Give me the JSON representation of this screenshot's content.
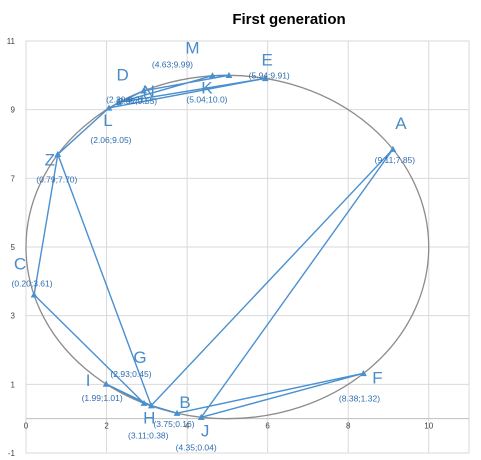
{
  "chart_data": {
    "type": "scatter",
    "title": "First generation",
    "xlabel": "",
    "ylabel": "",
    "xlim": [
      0,
      11
    ],
    "ylim": [
      -1,
      11
    ],
    "x_ticks": [
      "0",
      "2",
      "4",
      "6",
      "8",
      "10"
    ],
    "y_ticks": [
      "-1",
      "1",
      "3",
      "5",
      "7",
      "9",
      "11"
    ],
    "grid": true,
    "legend": "none",
    "colors": {
      "path": "#4a90d0",
      "circle": "#8c8c8c",
      "grid": "#d9d9d9",
      "label": "#4a8cc8"
    },
    "circle": {
      "center": [
        5,
        5
      ],
      "radius": 5
    },
    "points": [
      {
        "id": "A",
        "x": 9.11,
        "y": 7.85,
        "coord": "(9.11;7.85)"
      },
      {
        "id": "B",
        "x": 3.75,
        "y": 0.16,
        "coord": "(3.75;0.16)"
      },
      {
        "id": "C",
        "x": 0.2,
        "y": 3.61,
        "coord": "(0.20;3.61)"
      },
      {
        "id": "D",
        "x": 2.3,
        "y": 9.21,
        "coord": "(2.30;9.21)"
      },
      {
        "id": "E",
        "x": 5.94,
        "y": 9.91,
        "coord": "(5.94;9.91)"
      },
      {
        "id": "F",
        "x": 8.38,
        "y": 1.32,
        "coord": "(8.38;1.32)"
      },
      {
        "id": "G",
        "x": 2.93,
        "y": 0.45,
        "coord": "(2.93;0.45)"
      },
      {
        "id": "H",
        "x": 3.11,
        "y": 0.38,
        "coord": "(3.11;0.38)"
      },
      {
        "id": "I",
        "x": 1.99,
        "y": 1.01,
        "coord": "(1.99;1.01)"
      },
      {
        "id": "J",
        "x": 4.35,
        "y": 0.04,
        "coord": "(4.35;0.04)"
      },
      {
        "id": "K",
        "x": 5.04,
        "y": 10.0,
        "coord": "(5.04;10.0)"
      },
      {
        "id": "L",
        "x": 2.06,
        "y": 9.05,
        "coord": "(2.06;9.05)"
      },
      {
        "id": "M",
        "x": 4.63,
        "y": 9.99,
        "coord": "(4.63;9.99)"
      },
      {
        "id": "N",
        "x": 2.92,
        "y": 9.55,
        "coord": "(2.92;9.55)"
      },
      {
        "id": "Z",
        "x": 0.79,
        "y": 7.7,
        "coord": "(0.79;7.70)"
      }
    ],
    "path_order": [
      "A",
      "J",
      "F",
      "B",
      "H",
      "I",
      "G",
      "C",
      "Z",
      "L",
      "N",
      "K",
      "M",
      "D",
      "E",
      "L",
      "Z",
      "H",
      "A"
    ]
  }
}
